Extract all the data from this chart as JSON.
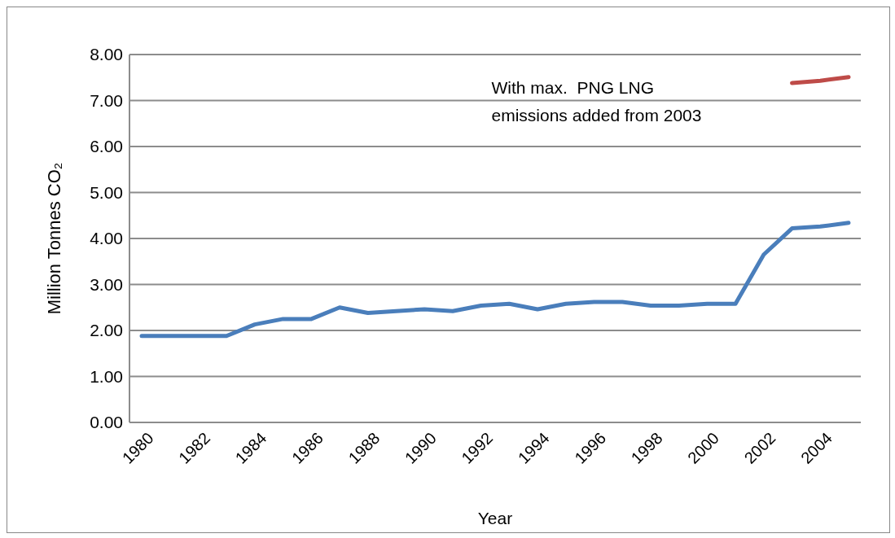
{
  "chart_data": {
    "type": "line",
    "xlabel": "Year",
    "ylabel": "Million Tonnes CO₂",
    "categories": [
      "1980",
      null,
      "1982",
      null,
      "1984",
      null,
      "1986",
      null,
      "1988",
      null,
      "1990",
      null,
      "1992",
      null,
      "1994",
      null,
      "1996",
      null,
      "1998",
      null,
      "2000",
      null,
      "2002",
      null,
      "2004",
      null
    ],
    "series": [
      {
        "color": "#4a7ebb",
        "values": [
          1.88,
          1.88,
          1.88,
          1.88,
          2.13,
          2.25,
          2.25,
          2.5,
          2.38,
          2.42,
          2.46,
          2.42,
          2.54,
          2.58,
          2.46,
          2.58,
          2.62,
          2.62,
          2.54,
          2.54,
          2.58,
          2.58,
          3.65,
          4.22,
          4.26,
          4.34
        ]
      },
      {
        "color": "#be4b48",
        "values": [
          null,
          null,
          null,
          null,
          null,
          null,
          null,
          null,
          null,
          null,
          null,
          null,
          null,
          null,
          null,
          null,
          null,
          null,
          null,
          null,
          null,
          null,
          null,
          7.38,
          7.43,
          7.51
        ]
      }
    ],
    "annotations": [
      "With max.  PNG LNG\nemissions added from 2003"
    ],
    "ylim": [
      0,
      8
    ],
    "yticks": [
      {
        "value": 0,
        "label": "0.00"
      },
      {
        "value": 1,
        "label": "1.00"
      },
      {
        "value": 2,
        "label": "2.00"
      },
      {
        "value": 3,
        "label": "3.00"
      },
      {
        "value": 4,
        "label": "4.00"
      },
      {
        "value": 5,
        "label": "5.00"
      },
      {
        "value": 6,
        "label": "6.00"
      },
      {
        "value": 7,
        "label": "7.00"
      },
      {
        "value": 8,
        "label": "8.00"
      }
    ],
    "grid": "y",
    "marker": "none",
    "line_style": "solid"
  }
}
